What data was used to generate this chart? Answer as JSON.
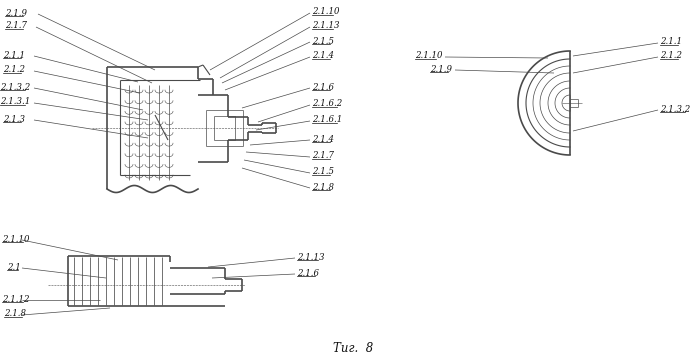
{
  "bg_color": "#ffffff",
  "line_color": "#4a4a4a",
  "fig_caption": "Τиг.  8",
  "fig_w": 7.0,
  "fig_h": 3.57,
  "dpi": 100
}
